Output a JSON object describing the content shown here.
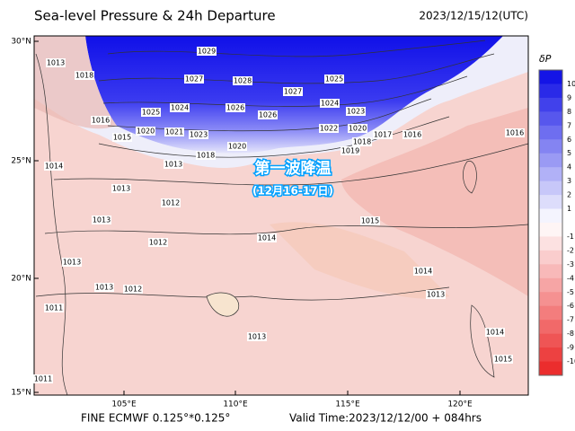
{
  "header": {
    "title": "Sea-level Pressure & 24h Departure",
    "date": "2023/12/15/12(UTC)"
  },
  "map": {
    "lat_labels": [
      "30°N",
      "25°N",
      "20°N",
      "15°N"
    ],
    "lon_labels": [
      "105°E",
      "110°E",
      "115°E",
      "120°E"
    ],
    "annotation": {
      "title": "第一波降温",
      "subtitle": "(12月16-17日)"
    },
    "isobar_labels": [
      "1029",
      "1028",
      "1027",
      "1027",
      "1025",
      "1025",
      "1024",
      "1026",
      "1026",
      "1024",
      "1023",
      "1023",
      "1020",
      "1021",
      "1022",
      "1020",
      "1018",
      "1016",
      "1015",
      "1018",
      "1020",
      "1019",
      "1018",
      "1017",
      "1016",
      "1016",
      "1013",
      "1014",
      "1013",
      "1013",
      "1012",
      "1012",
      "1013",
      "1013",
      "1012",
      "1013",
      "1011",
      "1011",
      "1014",
      "1015",
      "1014",
      "1013",
      "1013",
      "1014",
      "1015"
    ]
  },
  "colorbar": {
    "title": "δP",
    "labels": [
      "10",
      "9",
      "8",
      "7",
      "6",
      "5",
      "4",
      "3",
      "2",
      "1",
      "-1",
      "-2",
      "-3",
      "-4",
      "-5",
      "-6",
      "-7",
      "-8",
      "-9",
      "-10"
    ]
  },
  "footer": {
    "grid": "FINE ECMWF 0.125°*0.125°",
    "valid": "Valid Time:2023/12/12/00 + 084hrs"
  }
}
